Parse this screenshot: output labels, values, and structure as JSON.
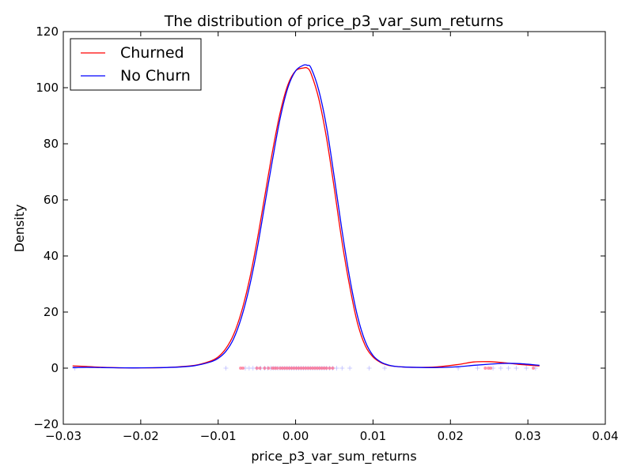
{
  "chart_data": {
    "type": "line",
    "title": "The distribution of price_p3_var_sum_returns",
    "xlabel": "price_p3_var_sum_returns",
    "ylabel": "Density",
    "xlim": [
      -0.03,
      0.04
    ],
    "ylim": [
      -20,
      120
    ],
    "xticks": [
      -0.03,
      -0.02,
      -0.01,
      0.0,
      0.01,
      0.02,
      0.03,
      0.04
    ],
    "xtick_labels": [
      "−0.03",
      "−0.02",
      "−0.01",
      "0.00",
      "0.01",
      "0.02",
      "0.03",
      "0.04"
    ],
    "yticks": [
      -20,
      0,
      20,
      40,
      60,
      80,
      100,
      120
    ],
    "ytick_labels": [
      "−20",
      "0",
      "20",
      "40",
      "60",
      "80",
      "100",
      "120"
    ],
    "grid": false,
    "legend_position": "top-left",
    "series": [
      {
        "name": "Churned",
        "color": "#ff0000",
        "x": [
          -0.0288,
          -0.027,
          -0.025,
          -0.022,
          -0.02,
          -0.017,
          -0.015,
          -0.013,
          -0.011,
          -0.01,
          -0.009,
          -0.008,
          -0.007,
          -0.006,
          -0.005,
          -0.004,
          -0.003,
          -0.002,
          -0.001,
          0.0,
          0.001,
          0.0015,
          0.002,
          0.003,
          0.004,
          0.005,
          0.006,
          0.007,
          0.008,
          0.009,
          0.01,
          0.011,
          0.012,
          0.013,
          0.015,
          0.018,
          0.021,
          0.023,
          0.025,
          0.027,
          0.029,
          0.0315
        ],
        "y": [
          0.8,
          0.6,
          0.3,
          0.1,
          0.1,
          0.2,
          0.5,
          1.0,
          2.5,
          4.0,
          7.0,
          12.0,
          20.0,
          31.0,
          45.0,
          61.0,
          77.0,
          91.0,
          101.0,
          106.0,
          107.0,
          107.0,
          105.0,
          96.0,
          82.0,
          64.0,
          45.0,
          29.0,
          16.0,
          8.0,
          4.0,
          2.0,
          1.0,
          0.6,
          0.3,
          0.4,
          1.3,
          2.2,
          2.3,
          1.9,
          1.3,
          0.8
        ]
      },
      {
        "name": "No Churn",
        "color": "#0000ff",
        "x": [
          -0.0288,
          -0.027,
          -0.025,
          -0.022,
          -0.02,
          -0.017,
          -0.015,
          -0.013,
          -0.011,
          -0.01,
          -0.009,
          -0.008,
          -0.007,
          -0.006,
          -0.005,
          -0.004,
          -0.003,
          -0.002,
          -0.001,
          0.0,
          0.001,
          0.0015,
          0.002,
          0.003,
          0.004,
          0.005,
          0.006,
          0.007,
          0.008,
          0.009,
          0.01,
          0.011,
          0.012,
          0.013,
          0.015,
          0.018,
          0.021,
          0.023,
          0.025,
          0.027,
          0.029,
          0.0315
        ],
        "y": [
          0.2,
          0.3,
          0.2,
          0.1,
          0.1,
          0.2,
          0.4,
          0.9,
          2.2,
          3.5,
          6.0,
          10.5,
          18.0,
          28.5,
          42.0,
          58.0,
          74.0,
          89.0,
          100.0,
          106.0,
          108.0,
          108.0,
          107.0,
          99.0,
          86.0,
          68.0,
          49.0,
          32.0,
          18.5,
          9.5,
          4.5,
          2.2,
          1.1,
          0.6,
          0.3,
          0.2,
          0.5,
          1.0,
          1.4,
          1.7,
          1.6,
          1.0
        ]
      }
    ],
    "rug": {
      "churned_x": [
        -0.0071,
        -0.0068,
        -0.005,
        -0.0046,
        -0.004,
        -0.0035,
        -0.003,
        -0.0027,
        -0.0024,
        -0.002,
        -0.0017,
        -0.0014,
        -0.0011,
        -0.0008,
        -0.0005,
        -0.0002,
        0.0001,
        0.0004,
        0.0007,
        0.001,
        0.0013,
        0.0016,
        0.0019,
        0.0022,
        0.0025,
        0.0028,
        0.0031,
        0.0034,
        0.0037,
        0.004,
        0.0044,
        0.0048,
        0.0245,
        0.0249,
        0.0252,
        0.0307
      ],
      "no_churn_x": [
        -0.0285,
        -0.009,
        -0.0065,
        -0.006,
        -0.0055,
        -0.005,
        -0.0045,
        -0.004,
        -0.0036,
        -0.0032,
        -0.0029,
        -0.0026,
        -0.0023,
        -0.002,
        -0.0017,
        -0.0014,
        -0.0011,
        -0.0008,
        -0.0005,
        -0.0002,
        0.0001,
        0.0004,
        0.0007,
        0.001,
        0.0013,
        0.0016,
        0.0019,
        0.0022,
        0.0025,
        0.0028,
        0.0031,
        0.0034,
        0.0037,
        0.004,
        0.0044,
        0.0048,
        0.0053,
        0.006,
        0.007,
        0.0095,
        0.0115,
        0.021,
        0.0235,
        0.0255,
        0.0265,
        0.0275,
        0.0285,
        0.0298,
        0.031
      ]
    }
  }
}
